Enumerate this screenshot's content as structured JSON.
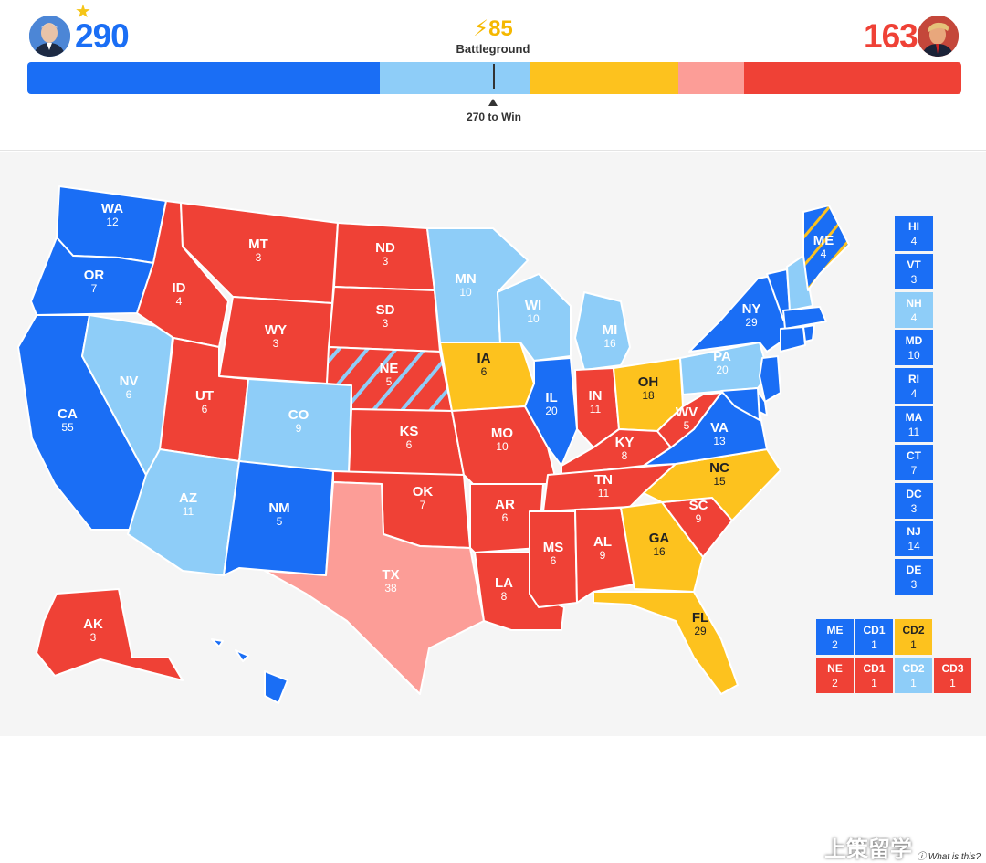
{
  "header": {
    "dem_count": "290",
    "rep_count": "163",
    "battleground_count": "85",
    "battleground_label": "Battleground",
    "win_label": "270 to Win"
  },
  "colors": {
    "dem": "#1a6ef5",
    "lean_dem": "#8ecdf8",
    "battleground": "#fdc21e",
    "lean_rep": "#fc9d97",
    "rep": "#ef4136"
  },
  "bar_segments": [
    {
      "category": "dem",
      "votes": 203
    },
    {
      "category": "lean_dem",
      "votes": 87
    },
    {
      "category": "battleground",
      "votes": 85
    },
    {
      "category": "lean_rep",
      "votes": 38
    },
    {
      "category": "rep",
      "votes": 125
    }
  ],
  "states": [
    {
      "abbr": "WA",
      "votes": "12"
    },
    {
      "abbr": "OR",
      "votes": "7"
    },
    {
      "abbr": "CA",
      "votes": "55"
    },
    {
      "abbr": "NV",
      "votes": "6"
    },
    {
      "abbr": "ID",
      "votes": "4"
    },
    {
      "abbr": "MT",
      "votes": "3"
    },
    {
      "abbr": "WY",
      "votes": "3"
    },
    {
      "abbr": "UT",
      "votes": "6"
    },
    {
      "abbr": "AZ",
      "votes": "11"
    },
    {
      "abbr": "CO",
      "votes": "9"
    },
    {
      "abbr": "NM",
      "votes": "5"
    },
    {
      "abbr": "ND",
      "votes": "3"
    },
    {
      "abbr": "SD",
      "votes": "3"
    },
    {
      "abbr": "NE",
      "votes": "5"
    },
    {
      "abbr": "KS",
      "votes": "6"
    },
    {
      "abbr": "OK",
      "votes": "7"
    },
    {
      "abbr": "TX",
      "votes": "38"
    },
    {
      "abbr": "MN",
      "votes": "10"
    },
    {
      "abbr": "IA",
      "votes": "6"
    },
    {
      "abbr": "MO",
      "votes": "10"
    },
    {
      "abbr": "AR",
      "votes": "6"
    },
    {
      "abbr": "LA",
      "votes": "8"
    },
    {
      "abbr": "WI",
      "votes": "10"
    },
    {
      "abbr": "IL",
      "votes": "20"
    },
    {
      "abbr": "MI",
      "votes": "16"
    },
    {
      "abbr": "IN",
      "votes": "11"
    },
    {
      "abbr": "OH",
      "votes": "18"
    },
    {
      "abbr": "KY",
      "votes": "8"
    },
    {
      "abbr": "TN",
      "votes": "11"
    },
    {
      "abbr": "MS",
      "votes": "6"
    },
    {
      "abbr": "AL",
      "votes": "9"
    },
    {
      "abbr": "GA",
      "votes": "16"
    },
    {
      "abbr": "FL",
      "votes": "29"
    },
    {
      "abbr": "SC",
      "votes": "9"
    },
    {
      "abbr": "NC",
      "votes": "15"
    },
    {
      "abbr": "VA",
      "votes": "13"
    },
    {
      "abbr": "WV",
      "votes": "5"
    },
    {
      "abbr": "PA",
      "votes": "20"
    },
    {
      "abbr": "NY",
      "votes": "29"
    },
    {
      "abbr": "ME",
      "votes": "4"
    },
    {
      "abbr": "AK",
      "votes": "3"
    }
  ],
  "small_states": [
    {
      "abbr": "HI",
      "votes": "4",
      "category": "dem"
    },
    {
      "abbr": "VT",
      "votes": "3",
      "category": "dem"
    },
    {
      "abbr": "NH",
      "votes": "4",
      "category": "lean_dem"
    },
    {
      "abbr": "MD",
      "votes": "10",
      "category": "dem"
    },
    {
      "abbr": "RI",
      "votes": "4",
      "category": "dem"
    },
    {
      "abbr": "MA",
      "votes": "11",
      "category": "dem"
    },
    {
      "abbr": "CT",
      "votes": "7",
      "category": "dem"
    },
    {
      "abbr": "DC",
      "votes": "3",
      "category": "dem"
    },
    {
      "abbr": "NJ",
      "votes": "14",
      "category": "dem"
    },
    {
      "abbr": "DE",
      "votes": "3",
      "category": "dem"
    }
  ],
  "districts": [
    {
      "label": "ME",
      "value": "2",
      "category": "dem"
    },
    {
      "label": "CD1",
      "value": "1",
      "category": "dem"
    },
    {
      "label": "CD2",
      "value": "1",
      "category": "battleground"
    },
    {
      "label": "NE",
      "value": "2",
      "category": "rep"
    },
    {
      "label": "CD1",
      "value": "1",
      "category": "rep"
    },
    {
      "label": "CD2",
      "value": "1",
      "category": "lean_dem"
    },
    {
      "label": "CD3",
      "value": "1",
      "category": "rep"
    }
  ],
  "footer": {
    "what_is_this": "What is this?",
    "watermark": "上策留学"
  }
}
